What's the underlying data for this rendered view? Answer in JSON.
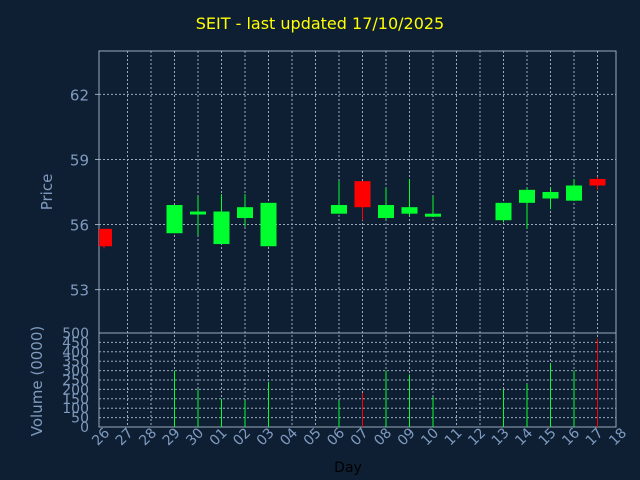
{
  "colors": {
    "background": "#0f1f33",
    "title": "#ffff00",
    "axis_text": "#7f9bbf",
    "up": "#00ff2e",
    "down": "#ff0000",
    "frame": "#9aa8bb",
    "grid": "#9aa8bb"
  },
  "chart_data": {
    "title": "SEIT - last updated 17/10/2025",
    "xlabel": "Day",
    "grid": true,
    "x_ticks": [
      "26",
      "27",
      "28",
      "29",
      "30",
      "01",
      "02",
      "03",
      "04",
      "05",
      "06",
      "07",
      "08",
      "09",
      "10",
      "11",
      "12",
      "13",
      "14",
      "15",
      "16",
      "17",
      "18"
    ],
    "charts": [
      {
        "type": "candlestick",
        "ylabel": "Price",
        "ylim": [
          51,
          64
        ],
        "y_ticks": [
          53,
          56,
          59,
          62
        ],
        "candles": [
          {
            "day": "26",
            "open": 55.8,
            "high": 55.8,
            "low": 54.9,
            "close": 55.0,
            "dir": "down"
          },
          {
            "day": "29",
            "open": 55.6,
            "high": 56.9,
            "low": 55.6,
            "close": 56.9,
            "dir": "up"
          },
          {
            "day": "30",
            "open": 56.5,
            "high": 57.3,
            "low": 55.5,
            "close": 56.6,
            "dir": "up"
          },
          {
            "day": "01",
            "open": 55.1,
            "high": 57.4,
            "low": 55.1,
            "close": 56.6,
            "dir": "up"
          },
          {
            "day": "02",
            "open": 56.3,
            "high": 57.4,
            "low": 55.9,
            "close": 56.8,
            "dir": "up"
          },
          {
            "day": "03",
            "open": 55.0,
            "high": 57.0,
            "low": 55.0,
            "close": 57.0,
            "dir": "up"
          },
          {
            "day": "06",
            "open": 56.5,
            "high": 58.0,
            "low": 56.5,
            "close": 56.9,
            "dir": "up"
          },
          {
            "day": "07",
            "open": 58.0,
            "high": 58.0,
            "low": 56.2,
            "close": 56.8,
            "dir": "down"
          },
          {
            "day": "08",
            "open": 56.3,
            "high": 57.7,
            "low": 56.2,
            "close": 56.9,
            "dir": "up"
          },
          {
            "day": "09",
            "open": 56.5,
            "high": 58.1,
            "low": 56.4,
            "close": 56.8,
            "dir": "up"
          },
          {
            "day": "10",
            "open": 56.5,
            "high": 57.3,
            "low": 56.4,
            "close": 56.5,
            "dir": "up"
          },
          {
            "day": "13",
            "open": 56.2,
            "high": 57.0,
            "low": 56.1,
            "close": 57.0,
            "dir": "up"
          },
          {
            "day": "14",
            "open": 57.0,
            "high": 57.7,
            "low": 55.8,
            "close": 57.6,
            "dir": "up"
          },
          {
            "day": "15",
            "open": 57.2,
            "high": 57.7,
            "low": 56.7,
            "close": 57.5,
            "dir": "up"
          },
          {
            "day": "16",
            "open": 57.1,
            "high": 58.1,
            "low": 57.1,
            "close": 57.8,
            "dir": "up"
          },
          {
            "day": "17",
            "open": 58.1,
            "high": 58.2,
            "low": 57.6,
            "close": 57.8,
            "dir": "down"
          }
        ]
      },
      {
        "type": "bar",
        "ylabel": "Volume (0000)",
        "ylim": [
          0,
          500
        ],
        "y_ticks": [
          0,
          50,
          100,
          150,
          200,
          250,
          300,
          350,
          400,
          450,
          500
        ],
        "categories": [
          "29",
          "30",
          "01",
          "02",
          "03",
          "06",
          "07",
          "08",
          "09",
          "10",
          "13",
          "14",
          "15",
          "16",
          "17"
        ],
        "values": [
          300,
          200,
          150,
          140,
          240,
          140,
          180,
          300,
          280,
          160,
          200,
          230,
          340,
          300,
          470
        ],
        "dirs": [
          "up",
          "up",
          "up",
          "up",
          "up",
          "up",
          "down",
          "up",
          "up",
          "up",
          "up",
          "up",
          "up",
          "up",
          "down"
        ]
      }
    ]
  }
}
